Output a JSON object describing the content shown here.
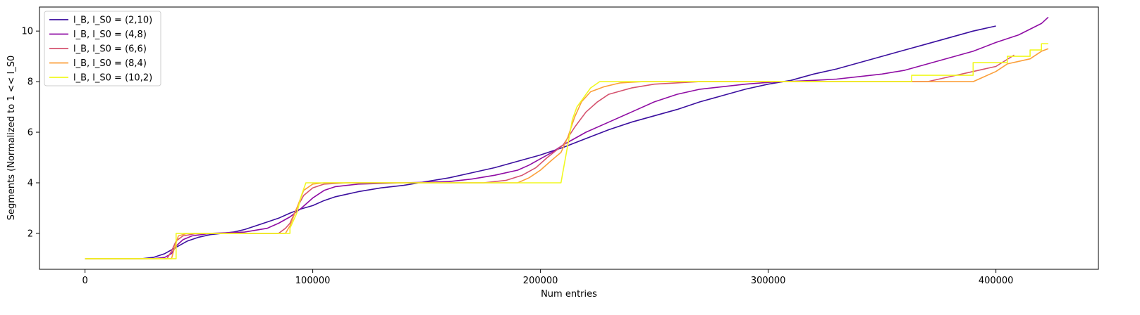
{
  "chart_data": {
    "type": "line",
    "title": "",
    "xlabel": "Num entries",
    "ylabel": "Segments (Normalized to 1 << l_S0",
    "xlim": [
      -20000,
      445000
    ],
    "ylim": [
      0.58,
      10.95
    ],
    "xticks": [
      0,
      100000,
      200000,
      300000,
      400000
    ],
    "yticks": [
      2,
      4,
      6,
      8,
      10
    ],
    "xtick_labels": [
      "0",
      "100000",
      "200000",
      "300000",
      "400000"
    ],
    "ytick_labels": [
      "2",
      "4",
      "6",
      "8",
      "10"
    ],
    "grid": false,
    "legend_position": "top-left",
    "series": [
      {
        "name": "l_B, l_S0 = (2,10)",
        "color": "#3b0f9f",
        "points": [
          [
            0,
            1
          ],
          [
            25000,
            1
          ],
          [
            30000,
            1.05
          ],
          [
            35000,
            1.2
          ],
          [
            40000,
            1.45
          ],
          [
            45000,
            1.7
          ],
          [
            50000,
            1.85
          ],
          [
            55000,
            1.95
          ],
          [
            60000,
            2.0
          ],
          [
            65000,
            2.05
          ],
          [
            70000,
            2.15
          ],
          [
            75000,
            2.3
          ],
          [
            80000,
            2.45
          ],
          [
            85000,
            2.6
          ],
          [
            90000,
            2.8
          ],
          [
            95000,
            2.97
          ],
          [
            100000,
            3.1
          ],
          [
            105000,
            3.3
          ],
          [
            110000,
            3.45
          ],
          [
            115000,
            3.55
          ],
          [
            120000,
            3.65
          ],
          [
            130000,
            3.8
          ],
          [
            140000,
            3.9
          ],
          [
            150000,
            4.05
          ],
          [
            160000,
            4.2
          ],
          [
            170000,
            4.4
          ],
          [
            180000,
            4.6
          ],
          [
            190000,
            4.85
          ],
          [
            200000,
            5.1
          ],
          [
            210000,
            5.4
          ],
          [
            220000,
            5.75
          ],
          [
            230000,
            6.1
          ],
          [
            240000,
            6.4
          ],
          [
            250000,
            6.65
          ],
          [
            260000,
            6.9
          ],
          [
            270000,
            7.2
          ],
          [
            280000,
            7.45
          ],
          [
            290000,
            7.7
          ],
          [
            300000,
            7.9
          ],
          [
            310000,
            8.05
          ],
          [
            320000,
            8.3
          ],
          [
            330000,
            8.5
          ],
          [
            340000,
            8.75
          ],
          [
            350000,
            9.0
          ],
          [
            360000,
            9.25
          ],
          [
            370000,
            9.5
          ],
          [
            380000,
            9.75
          ],
          [
            390000,
            10.0
          ],
          [
            400000,
            10.2
          ]
        ]
      },
      {
        "name": "l_B, l_S0 = (4,8)",
        "color": "#8f0da4",
        "points": [
          [
            0,
            1
          ],
          [
            30000,
            1
          ],
          [
            35000,
            1.05
          ],
          [
            38000,
            1.2
          ],
          [
            40000,
            1.5
          ],
          [
            43000,
            1.75
          ],
          [
            47000,
            1.9
          ],
          [
            55000,
            2.0
          ],
          [
            70000,
            2.05
          ],
          [
            80000,
            2.2
          ],
          [
            85000,
            2.4
          ],
          [
            90000,
            2.65
          ],
          [
            95000,
            3.0
          ],
          [
            100000,
            3.4
          ],
          [
            105000,
            3.7
          ],
          [
            110000,
            3.85
          ],
          [
            120000,
            3.95
          ],
          [
            140000,
            4.0
          ],
          [
            160000,
            4.05
          ],
          [
            170000,
            4.15
          ],
          [
            180000,
            4.3
          ],
          [
            190000,
            4.5
          ],
          [
            195000,
            4.7
          ],
          [
            200000,
            4.95
          ],
          [
            205000,
            5.2
          ],
          [
            210000,
            5.5
          ],
          [
            215000,
            5.75
          ],
          [
            220000,
            6.0
          ],
          [
            230000,
            6.4
          ],
          [
            240000,
            6.8
          ],
          [
            250000,
            7.2
          ],
          [
            260000,
            7.5
          ],
          [
            270000,
            7.7
          ],
          [
            280000,
            7.8
          ],
          [
            290000,
            7.9
          ],
          [
            300000,
            7.97
          ],
          [
            320000,
            8.05
          ],
          [
            330000,
            8.1
          ],
          [
            340000,
            8.2
          ],
          [
            350000,
            8.3
          ],
          [
            360000,
            8.45
          ],
          [
            370000,
            8.7
          ],
          [
            380000,
            8.95
          ],
          [
            390000,
            9.2
          ],
          [
            400000,
            9.55
          ],
          [
            410000,
            9.85
          ],
          [
            420000,
            10.3
          ],
          [
            423000,
            10.55
          ]
        ]
      },
      {
        "name": "l_B, l_S0 = (6,6)",
        "color": "#d5536f",
        "points": [
          [
            0,
            1
          ],
          [
            36000,
            1
          ],
          [
            38000,
            1.3
          ],
          [
            40000,
            1.7
          ],
          [
            43000,
            1.9
          ],
          [
            48000,
            1.98
          ],
          [
            55000,
            2.0
          ],
          [
            85000,
            2.0
          ],
          [
            88000,
            2.2
          ],
          [
            90000,
            2.4
          ],
          [
            93000,
            3.0
          ],
          [
            96000,
            3.5
          ],
          [
            100000,
            3.8
          ],
          [
            105000,
            3.95
          ],
          [
            115000,
            4.0
          ],
          [
            175000,
            4.0
          ],
          [
            185000,
            4.1
          ],
          [
            192000,
            4.3
          ],
          [
            198000,
            4.6
          ],
          [
            203000,
            5.0
          ],
          [
            210000,
            5.5
          ],
          [
            215000,
            6.2
          ],
          [
            220000,
            6.8
          ],
          [
            225000,
            7.2
          ],
          [
            230000,
            7.5
          ],
          [
            240000,
            7.75
          ],
          [
            250000,
            7.9
          ],
          [
            270000,
            8.0
          ],
          [
            370000,
            8.0
          ],
          [
            380000,
            8.2
          ],
          [
            390000,
            8.4
          ],
          [
            400000,
            8.6
          ],
          [
            408000,
            9.05
          ]
        ]
      },
      {
        "name": "l_B, l_S0 = (8,4)",
        "color": "#fb9f3a",
        "points": [
          [
            0,
            1
          ],
          [
            38000,
            1
          ],
          [
            39500,
            1.5
          ],
          [
            41000,
            1.9
          ],
          [
            45000,
            2.0
          ],
          [
            88000,
            2.0
          ],
          [
            90000,
            2.3
          ],
          [
            93000,
            3.0
          ],
          [
            96000,
            3.7
          ],
          [
            100000,
            3.95
          ],
          [
            105000,
            4.0
          ],
          [
            190000,
            4.0
          ],
          [
            195000,
            4.2
          ],
          [
            200000,
            4.5
          ],
          [
            205000,
            4.9
          ],
          [
            209000,
            5.2
          ],
          [
            212000,
            5.8
          ],
          [
            215000,
            6.6
          ],
          [
            218000,
            7.2
          ],
          [
            222000,
            7.6
          ],
          [
            228000,
            7.8
          ],
          [
            235000,
            7.95
          ],
          [
            245000,
            8.0
          ],
          [
            390000,
            8.0
          ],
          [
            395000,
            8.2
          ],
          [
            400000,
            8.4
          ],
          [
            405000,
            8.7
          ],
          [
            410000,
            8.8
          ],
          [
            415000,
            8.9
          ],
          [
            420000,
            9.2
          ],
          [
            423000,
            9.3
          ]
        ]
      },
      {
        "name": "l_B, l_S0 = (10,2)",
        "color": "#f0f921",
        "points": [
          [
            0,
            1
          ],
          [
            40000,
            1
          ],
          [
            40000,
            2.0
          ],
          [
            90000,
            2.0
          ],
          [
            90000,
            2.2
          ],
          [
            93000,
            2.8
          ],
          [
            95000,
            3.5
          ],
          [
            97000,
            4.0
          ],
          [
            209000,
            4.0
          ],
          [
            210000,
            4.5
          ],
          [
            212000,
            5.5
          ],
          [
            214000,
            6.5
          ],
          [
            216000,
            7.0
          ],
          [
            218000,
            7.25
          ],
          [
            220000,
            7.5
          ],
          [
            222000,
            7.75
          ],
          [
            226000,
            8.0
          ],
          [
            363000,
            8.0
          ],
          [
            363000,
            8.25
          ],
          [
            390000,
            8.25
          ],
          [
            390000,
            8.75
          ],
          [
            405000,
            8.75
          ],
          [
            405000,
            9.0
          ],
          [
            415000,
            9.0
          ],
          [
            415000,
            9.25
          ],
          [
            420000,
            9.25
          ],
          [
            420000,
            9.5
          ],
          [
            423000,
            9.5
          ]
        ]
      }
    ]
  }
}
